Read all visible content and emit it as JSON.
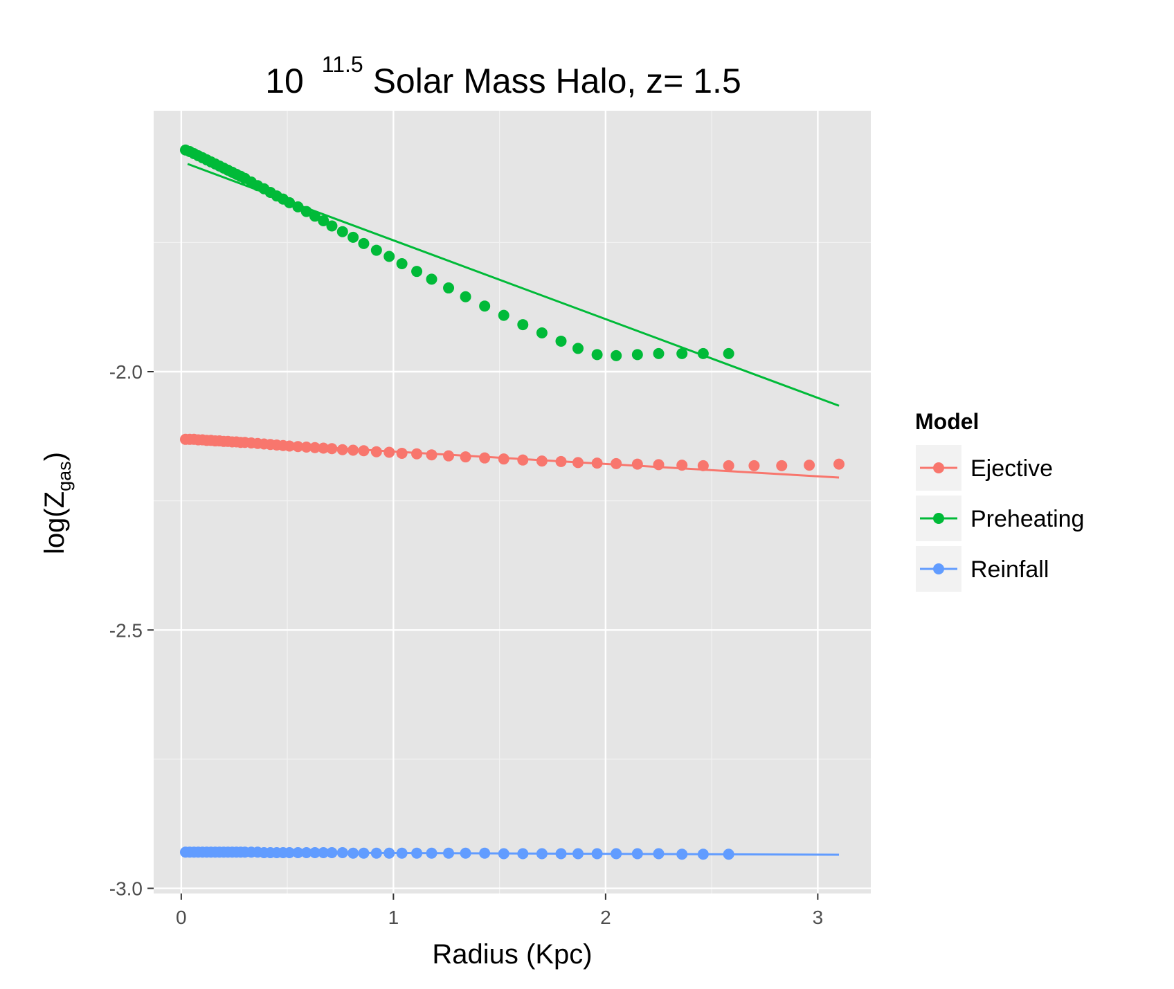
{
  "chart_data": {
    "type": "scatter",
    "title": {
      "prefix": "10",
      "superscript": "11.5",
      "suffix": " Solar Mass Halo, z= 1.5"
    },
    "xlabel": "Radius (Kpc)",
    "ylabel": {
      "main": "log(Z",
      "sub": "gas",
      "close": ")"
    },
    "xlim": [
      -0.13,
      3.25
    ],
    "ylim": [
      -3.01,
      -1.495
    ],
    "x_ticks": [
      0,
      1,
      2,
      3
    ],
    "x_tick_labels": [
      "0",
      "1",
      "2",
      "3"
    ],
    "y_ticks": [
      -3.0,
      -2.5,
      -2.0
    ],
    "y_tick_labels": [
      "-3.0",
      "-2.5",
      "-2.0"
    ],
    "grid": true,
    "legend": {
      "title": "Model",
      "position": "right"
    },
    "series": [
      {
        "name": "Ejective",
        "color": "#F8766D",
        "points": [
          [
            0.02,
            -2.131
          ],
          [
            0.04,
            -2.131
          ],
          [
            0.06,
            -2.131
          ],
          [
            0.08,
            -2.132
          ],
          [
            0.1,
            -2.132
          ],
          [
            0.12,
            -2.133
          ],
          [
            0.14,
            -2.133
          ],
          [
            0.16,
            -2.134
          ],
          [
            0.18,
            -2.134
          ],
          [
            0.2,
            -2.135
          ],
          [
            0.22,
            -2.135
          ],
          [
            0.24,
            -2.136
          ],
          [
            0.26,
            -2.136
          ],
          [
            0.28,
            -2.137
          ],
          [
            0.3,
            -2.137
          ],
          [
            0.33,
            -2.138
          ],
          [
            0.36,
            -2.139
          ],
          [
            0.39,
            -2.14
          ],
          [
            0.42,
            -2.141
          ],
          [
            0.45,
            -2.142
          ],
          [
            0.48,
            -2.143
          ],
          [
            0.51,
            -2.144
          ],
          [
            0.55,
            -2.145
          ],
          [
            0.59,
            -2.146
          ],
          [
            0.63,
            -2.147
          ],
          [
            0.67,
            -2.148
          ],
          [
            0.71,
            -2.149
          ],
          [
            0.76,
            -2.151
          ],
          [
            0.81,
            -2.152
          ],
          [
            0.86,
            -2.153
          ],
          [
            0.92,
            -2.155
          ],
          [
            0.98,
            -2.156
          ],
          [
            1.04,
            -2.158
          ],
          [
            1.11,
            -2.159
          ],
          [
            1.18,
            -2.161
          ],
          [
            1.26,
            -2.163
          ],
          [
            1.34,
            -2.165
          ],
          [
            1.43,
            -2.167
          ],
          [
            1.52,
            -2.169
          ],
          [
            1.61,
            -2.171
          ],
          [
            1.7,
            -2.173
          ],
          [
            1.79,
            -2.174
          ],
          [
            1.87,
            -2.176
          ],
          [
            1.96,
            -2.177
          ],
          [
            2.05,
            -2.178
          ],
          [
            2.15,
            -2.179
          ],
          [
            2.25,
            -2.18
          ],
          [
            2.36,
            -2.181
          ],
          [
            2.46,
            -2.182
          ],
          [
            2.58,
            -2.182
          ],
          [
            2.7,
            -2.182
          ],
          [
            2.83,
            -2.182
          ],
          [
            2.96,
            -2.181
          ],
          [
            3.1,
            -2.179
          ]
        ],
        "fit": [
          [
            0.02,
            -2.131
          ],
          [
            3.1,
            -2.205
          ]
        ]
      },
      {
        "name": "Preheating",
        "color": "#00BA38",
        "points": [
          [
            0.02,
            -1.571
          ],
          [
            0.04,
            -1.574
          ],
          [
            0.06,
            -1.578
          ],
          [
            0.08,
            -1.582
          ],
          [
            0.1,
            -1.586
          ],
          [
            0.12,
            -1.59
          ],
          [
            0.14,
            -1.594
          ],
          [
            0.16,
            -1.598
          ],
          [
            0.18,
            -1.602
          ],
          [
            0.2,
            -1.606
          ],
          [
            0.22,
            -1.61
          ],
          [
            0.24,
            -1.614
          ],
          [
            0.26,
            -1.618
          ],
          [
            0.28,
            -1.622
          ],
          [
            0.3,
            -1.626
          ],
          [
            0.33,
            -1.633
          ],
          [
            0.36,
            -1.64
          ],
          [
            0.39,
            -1.646
          ],
          [
            0.42,
            -1.653
          ],
          [
            0.45,
            -1.66
          ],
          [
            0.48,
            -1.666
          ],
          [
            0.51,
            -1.673
          ],
          [
            0.55,
            -1.681
          ],
          [
            0.59,
            -1.69
          ],
          [
            0.63,
            -1.699
          ],
          [
            0.67,
            -1.708
          ],
          [
            0.71,
            -1.718
          ],
          [
            0.76,
            -1.729
          ],
          [
            0.81,
            -1.74
          ],
          [
            0.86,
            -1.752
          ],
          [
            0.92,
            -1.765
          ],
          [
            0.98,
            -1.777
          ],
          [
            1.04,
            -1.791
          ],
          [
            1.11,
            -1.806
          ],
          [
            1.18,
            -1.821
          ],
          [
            1.26,
            -1.838
          ],
          [
            1.34,
            -1.855
          ],
          [
            1.43,
            -1.873
          ],
          [
            1.52,
            -1.891
          ],
          [
            1.61,
            -1.909
          ],
          [
            1.7,
            -1.925
          ],
          [
            1.79,
            -1.941
          ],
          [
            1.87,
            -1.955
          ],
          [
            1.96,
            -1.967
          ],
          [
            2.05,
            -1.969
          ],
          [
            2.15,
            -1.967
          ],
          [
            2.25,
            -1.965
          ],
          [
            2.36,
            -1.965
          ],
          [
            2.46,
            -1.965
          ],
          [
            2.58,
            -1.965
          ]
        ],
        "fit": [
          [
            0.03,
            -1.598
          ],
          [
            3.1,
            -2.066
          ]
        ]
      },
      {
        "name": "Reinfall",
        "color": "#619CFF",
        "points": [
          [
            0.02,
            -2.93
          ],
          [
            0.04,
            -2.93
          ],
          [
            0.06,
            -2.93
          ],
          [
            0.08,
            -2.93
          ],
          [
            0.1,
            -2.93
          ],
          [
            0.12,
            -2.93
          ],
          [
            0.14,
            -2.93
          ],
          [
            0.16,
            -2.93
          ],
          [
            0.18,
            -2.93
          ],
          [
            0.2,
            -2.93
          ],
          [
            0.22,
            -2.93
          ],
          [
            0.24,
            -2.93
          ],
          [
            0.26,
            -2.93
          ],
          [
            0.28,
            -2.93
          ],
          [
            0.3,
            -2.93
          ],
          [
            0.33,
            -2.93
          ],
          [
            0.36,
            -2.93
          ],
          [
            0.39,
            -2.931
          ],
          [
            0.42,
            -2.931
          ],
          [
            0.45,
            -2.931
          ],
          [
            0.48,
            -2.931
          ],
          [
            0.51,
            -2.931
          ],
          [
            0.55,
            -2.931
          ],
          [
            0.59,
            -2.931
          ],
          [
            0.63,
            -2.931
          ],
          [
            0.67,
            -2.931
          ],
          [
            0.71,
            -2.931
          ],
          [
            0.76,
            -2.931
          ],
          [
            0.81,
            -2.932
          ],
          [
            0.86,
            -2.932
          ],
          [
            0.92,
            -2.932
          ],
          [
            0.98,
            -2.932
          ],
          [
            1.04,
            -2.932
          ],
          [
            1.11,
            -2.932
          ],
          [
            1.18,
            -2.932
          ],
          [
            1.26,
            -2.932
          ],
          [
            1.34,
            -2.932
          ],
          [
            1.43,
            -2.932
          ],
          [
            1.52,
            -2.933
          ],
          [
            1.61,
            -2.933
          ],
          [
            1.7,
            -2.933
          ],
          [
            1.79,
            -2.933
          ],
          [
            1.87,
            -2.933
          ],
          [
            1.96,
            -2.933
          ],
          [
            2.05,
            -2.933
          ],
          [
            2.15,
            -2.933
          ],
          [
            2.25,
            -2.933
          ],
          [
            2.36,
            -2.934
          ],
          [
            2.46,
            -2.934
          ],
          [
            2.58,
            -2.934
          ]
        ],
        "fit": [
          [
            0.02,
            -2.93
          ],
          [
            3.1,
            -2.935
          ]
        ]
      }
    ]
  }
}
